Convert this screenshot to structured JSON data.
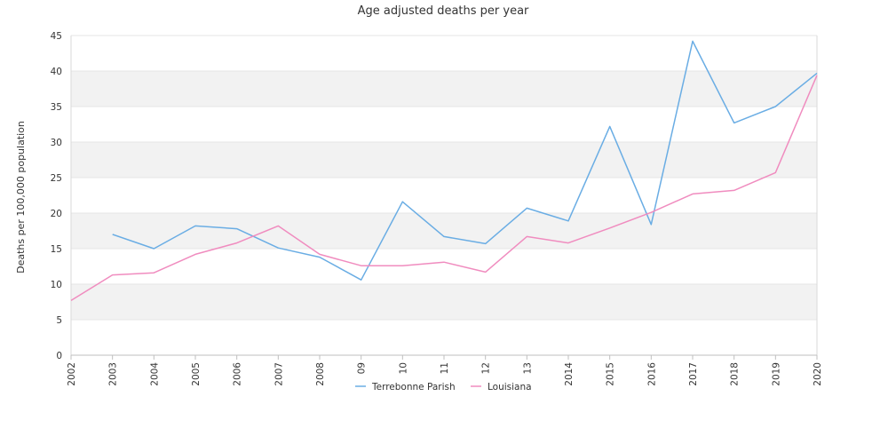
{
  "chart_data": {
    "type": "line",
    "title": "Age adjusted deaths per year",
    "xlabel": "",
    "ylabel": "Deaths per 100,000 population",
    "ylim": [
      0,
      45
    ],
    "yticks": [
      0,
      5,
      10,
      15,
      20,
      25,
      30,
      35,
      40,
      45
    ],
    "grid": "alternating horizontal bands",
    "legend_position": "bottom",
    "categories": [
      "2002",
      "2003",
      "2004",
      "2005",
      "2006",
      "2007",
      "2008",
      "09",
      "10",
      "11",
      "12",
      "13",
      "2014",
      "2015",
      "2016",
      "2017",
      "2018",
      "2019",
      "2020"
    ],
    "series": [
      {
        "name": "Terrebonne Parish",
        "color": "#6aade4",
        "values": [
          null,
          17.0,
          15.0,
          18.2,
          17.8,
          15.1,
          13.8,
          10.6,
          21.6,
          16.7,
          15.7,
          20.7,
          18.9,
          32.2,
          18.4,
          44.2,
          32.7,
          35.0,
          39.7
        ]
      },
      {
        "name": "Louisiana",
        "color": "#f08cbf",
        "values": [
          7.7,
          11.3,
          11.6,
          14.2,
          15.8,
          18.2,
          14.2,
          12.6,
          12.6,
          13.1,
          11.7,
          16.7,
          15.8,
          17.9,
          20.1,
          22.7,
          23.2,
          25.7,
          39.4
        ]
      }
    ]
  }
}
